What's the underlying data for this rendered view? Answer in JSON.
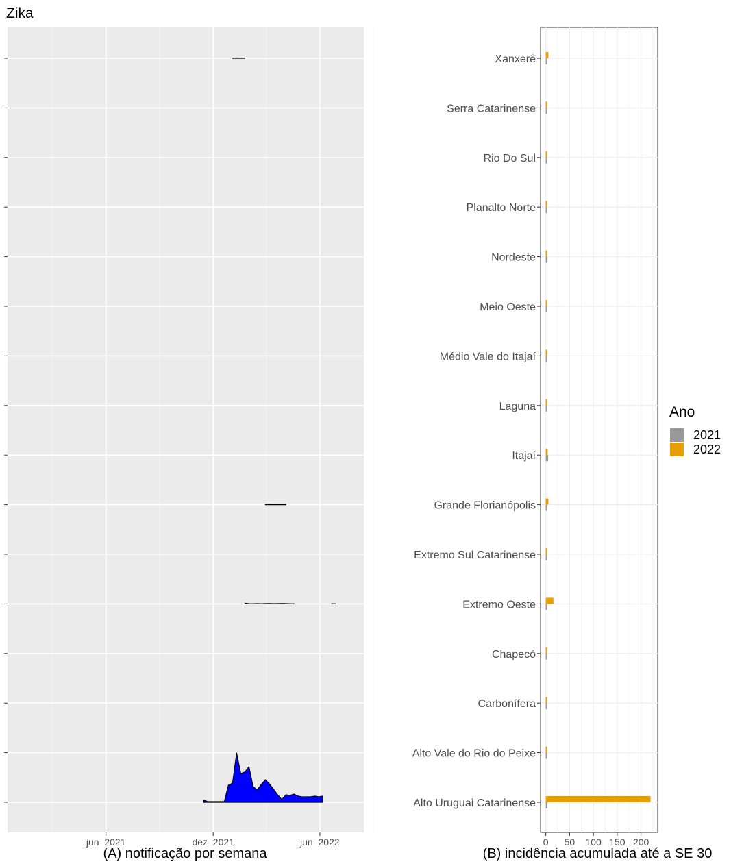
{
  "figure_title": "Zika",
  "colors": {
    "panel_bg": "#ebebeb",
    "area_fill": "#0000ff",
    "bar_2021": "#999999",
    "bar_2022": "#e69f00"
  },
  "chart_data": [
    {
      "type": "area",
      "panel": "A",
      "caption": "(A) notificação por semana",
      "x_tick_labels": [
        "jun–2021",
        "dez–2021",
        "jun–2022"
      ],
      "x_ticks": [
        "2021-06-01",
        "2021-12-01",
        "2022-06-01"
      ],
      "xlim": [
        "2020-12-15",
        "2022-08-15"
      ],
      "facets_bottom_to_top": [
        "Alto Uruguai Catarinense",
        "Alto Vale do Rio do Peixe",
        "Carbonífera",
        "Chapecó",
        "Extremo Oeste",
        "Extremo Sul Catarinense",
        "Grande Florianópolis",
        "Itajaí",
        "Laguna",
        "Médio Vale do Itajaí",
        "Meio Oeste",
        "Nordeste",
        "Planalto Norte",
        "Rio Do Sul",
        "Serra Catarinense",
        "Xanxerê"
      ],
      "series": [
        {
          "region": "Alto Uruguai Catarinense",
          "x": [
            "2021-11-15",
            "2021-11-22",
            "2021-11-29",
            "2021-12-06",
            "2021-12-13",
            "2021-12-20",
            "2021-12-27",
            "2022-01-03",
            "2022-01-10",
            "2022-01-17",
            "2022-01-24",
            "2022-01-31",
            "2022-02-07",
            "2022-02-14",
            "2022-02-21",
            "2022-02-28",
            "2022-03-07",
            "2022-03-14",
            "2022-03-21",
            "2022-03-28",
            "2022-04-04",
            "2022-04-11",
            "2022-04-18",
            "2022-04-25",
            "2022-05-02",
            "2022-05-09",
            "2022-05-16",
            "2022-05-23",
            "2022-05-30",
            "2022-06-06"
          ],
          "y": [
            3,
            1,
            1,
            1,
            1,
            1,
            25,
            28,
            72,
            42,
            44,
            52,
            23,
            18,
            26,
            33,
            27,
            19,
            11,
            4,
            11,
            10,
            12,
            9,
            8,
            8,
            8,
            9,
            8,
            9
          ]
        },
        {
          "region": "Extremo Oeste",
          "x": [
            "2022-01-24",
            "2022-01-31",
            "2022-02-07",
            "2022-02-14",
            "2022-02-21",
            "2022-02-28",
            "2022-03-07",
            "2022-03-14",
            "2022-03-21",
            "2022-03-28",
            "2022-04-04",
            "2022-04-11",
            "2022-04-18",
            "2022-06-21",
            "2022-06-28"
          ],
          "y": [
            1,
            0.35,
            0.2,
            0.4,
            0.25,
            0.45,
            0.55,
            0.35,
            0.45,
            0.55,
            0.4,
            0.25,
            0.25,
            0.25,
            0.25
          ]
        },
        {
          "region": "Grande Florianópolis",
          "x": [
            "2022-02-28",
            "2022-03-07",
            "2022-03-14",
            "2022-03-21",
            "2022-03-28",
            "2022-04-04"
          ],
          "y": [
            0.3,
            0.5,
            0.25,
            0.25,
            0.25,
            0.25
          ]
        },
        {
          "region": "Xanxerê",
          "x": [
            "2022-01-03",
            "2022-01-10",
            "2022-01-17",
            "2022-01-24"
          ],
          "y": [
            0.25,
            0.5,
            0.3,
            0.25
          ]
        }
      ]
    },
    {
      "type": "bar",
      "orientation": "horizontal",
      "panel": "B",
      "caption": "(B) incidência acumulada até a SE 30",
      "legend_title": "Ano",
      "legend_position": "right",
      "x_ticks": [
        0,
        50,
        100,
        150,
        200
      ],
      "xlim": [
        -11,
        235
      ],
      "categories": [
        "Alto Uruguai Catarinense",
        "Alto Vale do Rio do Peixe",
        "Carbonífera",
        "Chapecó",
        "Extremo Oeste",
        "Extremo Sul Catarinense",
        "Grande Florianópolis",
        "Itajaí",
        "Laguna",
        "Médio Vale do Itajaí",
        "Meio Oeste",
        "Nordeste",
        "Planalto Norte",
        "Rio Do Sul",
        "Serra Catarinense",
        "Xanxerê"
      ],
      "series": [
        {
          "name": "2021",
          "values": [
            3.5,
            0.8,
            0.8,
            0.8,
            0.8,
            0.8,
            1.5,
            5,
            0.8,
            0.8,
            2.5,
            3.5,
            0.8,
            0.8,
            0.8,
            0.8
          ]
        },
        {
          "name": "2022",
          "values": [
            220,
            1.5,
            0.8,
            2,
            16,
            0.8,
            5.5,
            4,
            1.5,
            1.5,
            1.5,
            1.5,
            0.8,
            1.5,
            1.5,
            5.5
          ]
        }
      ]
    }
  ]
}
